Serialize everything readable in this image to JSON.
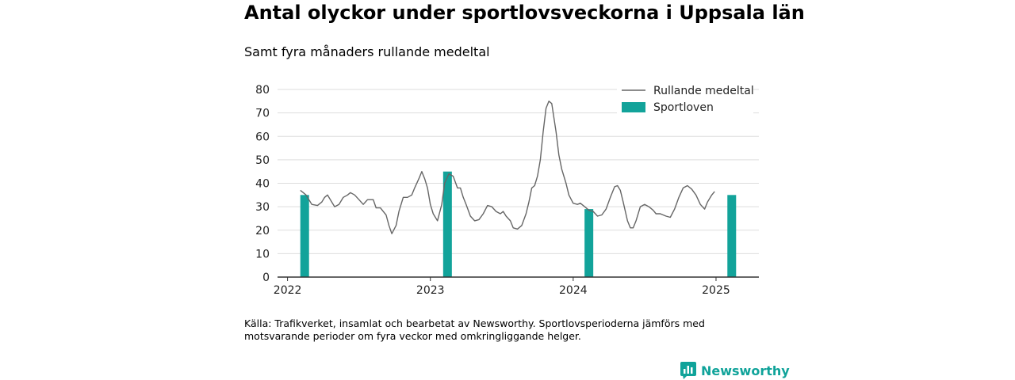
{
  "title": "Antal olyckor under sportlovsveckorna i Uppsala län",
  "subtitle": "Samt fyra månaders rullande medeltal",
  "source": "Källa: Trafikverket, insamlat och bearbetat av Newsworthy. Sportlovsperioderna jämförs med motsvarande perioder om fyra veckor med omkringliggande helger.",
  "brand": "Newsworthy",
  "colors": {
    "line": "#666666",
    "bar": "#12a39a",
    "grid": "#dddddd",
    "axis": "#333333",
    "brand": "#10a39a"
  },
  "icons": {
    "brand_logo": "bar-chart-speech-bubble-icon"
  },
  "chart_data": {
    "type": "bar+line",
    "title": "Antal olyckor under sportlovsveckorna i Uppsala län",
    "subtitle": "Samt fyra månaders rullande medeltal",
    "ylim": [
      0,
      80
    ],
    "yticks": [
      0,
      10,
      20,
      30,
      40,
      50,
      60,
      70,
      80
    ],
    "xticks": [
      2022,
      2023,
      2024,
      2025
    ],
    "xlim": [
      2021.93,
      2025.3
    ],
    "grid": true,
    "legend_position": "top-right",
    "legend": [
      "Rullande medeltal",
      "Sportloven"
    ],
    "series": [
      {
        "name": "Rullande medeltal",
        "type": "line",
        "points": [
          [
            2022.09,
            37
          ],
          [
            2022.13,
            35
          ],
          [
            2022.17,
            31
          ],
          [
            2022.21,
            30.5
          ],
          [
            2022.24,
            32
          ],
          [
            2022.26,
            34
          ],
          [
            2022.28,
            35
          ],
          [
            2022.31,
            32
          ],
          [
            2022.33,
            30
          ],
          [
            2022.36,
            31
          ],
          [
            2022.39,
            34
          ],
          [
            2022.42,
            35
          ],
          [
            2022.44,
            36
          ],
          [
            2022.47,
            35
          ],
          [
            2022.5,
            33
          ],
          [
            2022.53,
            31
          ],
          [
            2022.56,
            33
          ],
          [
            2022.6,
            33
          ],
          [
            2022.62,
            29.5
          ],
          [
            2022.65,
            29.5
          ],
          [
            2022.67,
            28
          ],
          [
            2022.69,
            26.5
          ],
          [
            2022.71,
            22
          ],
          [
            2022.73,
            18.5
          ],
          [
            2022.76,
            22
          ],
          [
            2022.78,
            28
          ],
          [
            2022.81,
            34
          ],
          [
            2022.84,
            34
          ],
          [
            2022.87,
            35
          ],
          [
            2022.89,
            38
          ],
          [
            2022.92,
            42
          ],
          [
            2022.94,
            45
          ],
          [
            2022.96,
            42
          ],
          [
            2022.98,
            38
          ],
          [
            2023.0,
            31
          ],
          [
            2023.02,
            27
          ],
          [
            2023.05,
            24
          ],
          [
            2023.08,
            31
          ],
          [
            2023.1,
            40
          ],
          [
            2023.13,
            44
          ],
          [
            2023.16,
            43
          ],
          [
            2023.19,
            38
          ],
          [
            2023.21,
            38
          ],
          [
            2023.23,
            34
          ],
          [
            2023.25,
            31
          ],
          [
            2023.28,
            26
          ],
          [
            2023.31,
            24
          ],
          [
            2023.34,
            24.5
          ],
          [
            2023.37,
            27
          ],
          [
            2023.4,
            30.5
          ],
          [
            2023.43,
            30
          ],
          [
            2023.46,
            28
          ],
          [
            2023.49,
            27
          ],
          [
            2023.51,
            28
          ],
          [
            2023.53,
            26
          ],
          [
            2023.56,
            24
          ],
          [
            2023.58,
            21
          ],
          [
            2023.61,
            20.5
          ],
          [
            2023.64,
            22
          ],
          [
            2023.67,
            27
          ],
          [
            2023.69,
            32
          ],
          [
            2023.71,
            38
          ],
          [
            2023.73,
            39
          ],
          [
            2023.75,
            43
          ],
          [
            2023.77,
            50
          ],
          [
            2023.79,
            62
          ],
          [
            2023.81,
            72
          ],
          [
            2023.83,
            75
          ],
          [
            2023.85,
            74
          ],
          [
            2023.88,
            62
          ],
          [
            2023.9,
            52
          ],
          [
            2023.92,
            46
          ],
          [
            2023.95,
            40
          ],
          [
            2023.97,
            35
          ],
          [
            2024.0,
            31.5
          ],
          [
            2024.03,
            31
          ],
          [
            2024.05,
            31.5
          ],
          [
            2024.08,
            30
          ],
          [
            2024.11,
            28.5
          ],
          [
            2024.14,
            28
          ],
          [
            2024.17,
            26
          ],
          [
            2024.2,
            26.5
          ],
          [
            2024.23,
            29
          ],
          [
            2024.26,
            34
          ],
          [
            2024.29,
            38.5
          ],
          [
            2024.31,
            39
          ],
          [
            2024.33,
            37
          ],
          [
            2024.35,
            32
          ],
          [
            2024.38,
            24
          ],
          [
            2024.4,
            21
          ],
          [
            2024.42,
            21
          ],
          [
            2024.44,
            24
          ],
          [
            2024.47,
            30
          ],
          [
            2024.5,
            31
          ],
          [
            2024.53,
            30
          ],
          [
            2024.56,
            28.5
          ],
          [
            2024.58,
            27
          ],
          [
            2024.61,
            27
          ],
          [
            2024.65,
            26
          ],
          [
            2024.68,
            25.5
          ],
          [
            2024.71,
            29
          ],
          [
            2024.74,
            34
          ],
          [
            2024.77,
            38
          ],
          [
            2024.8,
            39
          ],
          [
            2024.83,
            37.5
          ],
          [
            2024.86,
            35
          ],
          [
            2024.89,
            31
          ],
          [
            2024.92,
            29
          ],
          [
            2024.94,
            32
          ],
          [
            2024.97,
            35
          ],
          [
            2024.99,
            36.5
          ]
        ]
      },
      {
        "name": "Sportloven",
        "type": "bar",
        "x": [
          2022.12,
          2023.12,
          2024.11,
          2025.11
        ],
        "values": [
          35,
          45,
          29,
          35
        ]
      }
    ]
  }
}
